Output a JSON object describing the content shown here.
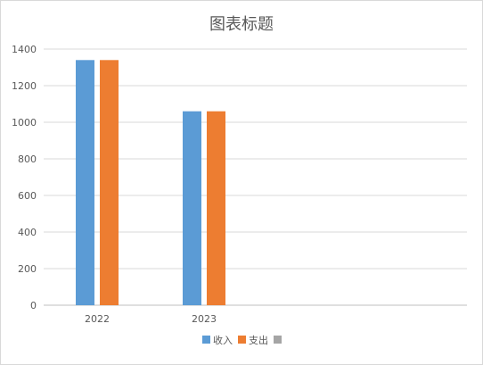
{
  "chart_data": {
    "type": "bar",
    "title": "图表标题",
    "xlabel": "",
    "ylabel": "",
    "categories": [
      "2022",
      "2023"
    ],
    "ylim": [
      0,
      1400
    ],
    "yticks": [
      0,
      200,
      400,
      600,
      800,
      1000,
      1200,
      1400
    ],
    "grid": true,
    "legend_position": "bottom",
    "series": [
      {
        "name": "收入",
        "values": [
          1340,
          1060
        ],
        "color": "#5b9bd5"
      },
      {
        "name": "支出",
        "values": [
          1340,
          1060
        ],
        "color": "#ed7d31"
      },
      {
        "name": "",
        "values": [
          null,
          null
        ],
        "color": "#a5a5a5"
      }
    ]
  }
}
